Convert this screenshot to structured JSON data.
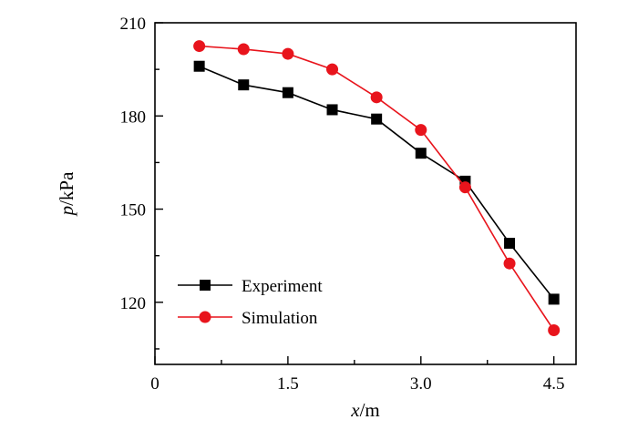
{
  "chart_data": {
    "type": "line",
    "x_label_var": "x",
    "x_label_unit": "/m",
    "y_label_var": "p",
    "y_label_unit": "/kPa",
    "x_ticks": [
      "0",
      "1.5",
      "3.0",
      "4.5"
    ],
    "y_ticks": [
      "120",
      "150",
      "180",
      "210"
    ],
    "xlim": [
      0,
      4.75
    ],
    "ylim": [
      100,
      210
    ],
    "legend_position": "bottom-left",
    "grid": false,
    "series": [
      {
        "name": "Experiment",
        "color": "#000000",
        "marker": "square",
        "x": [
          0.5,
          1.0,
          1.5,
          2.0,
          2.5,
          3.0,
          3.5,
          4.0,
          4.5
        ],
        "y": [
          196,
          190,
          187.5,
          182,
          179,
          168,
          159,
          139,
          121
        ]
      },
      {
        "name": "Simulation",
        "color": "#e8141c",
        "marker": "circle",
        "x": [
          0.5,
          1.0,
          1.5,
          2.0,
          2.5,
          3.0,
          3.5,
          4.0,
          4.5
        ],
        "y": [
          202.5,
          201.5,
          200,
          195,
          186,
          175.5,
          157,
          132.5,
          111
        ]
      }
    ]
  }
}
